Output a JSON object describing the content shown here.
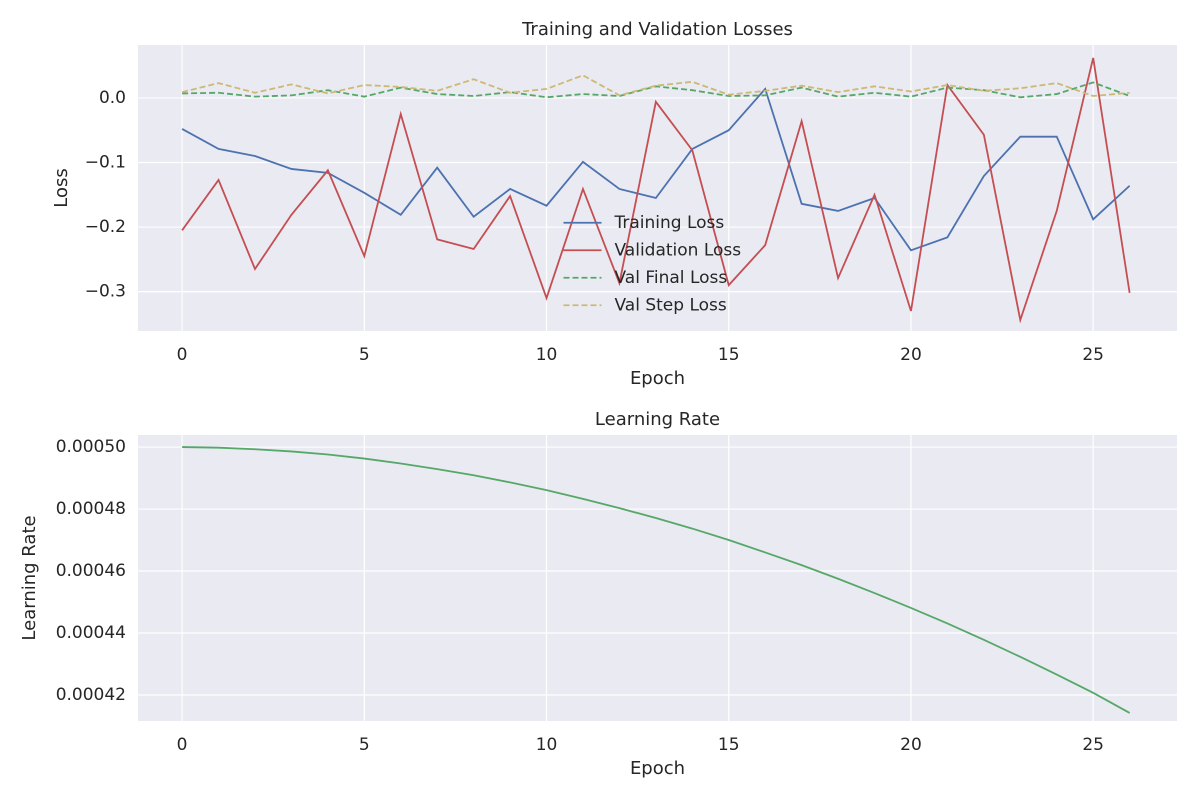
{
  "chart_data": [
    {
      "type": "line",
      "title": "Training and Validation Losses",
      "xlabel": "Epoch",
      "ylabel": "Loss",
      "x": [
        0,
        1,
        2,
        3,
        4,
        5,
        6,
        7,
        8,
        9,
        10,
        11,
        12,
        13,
        14,
        15,
        16,
        17,
        18,
        19,
        20,
        21,
        22,
        23,
        24,
        25,
        26
      ],
      "series": [
        {
          "name": "Training Loss",
          "color": "#4c72b0",
          "linestyle": "solid",
          "values": [
            -0.048,
            -0.079,
            -0.09,
            -0.11,
            -0.116,
            -0.147,
            -0.181,
            -0.108,
            -0.184,
            -0.141,
            -0.167,
            -0.099,
            -0.141,
            -0.155,
            -0.079,
            -0.05,
            0.014,
            -0.164,
            -0.175,
            -0.155,
            -0.236,
            -0.216,
            -0.121,
            -0.06,
            -0.06,
            -0.188,
            -0.136
          ]
        },
        {
          "name": "Validation Loss",
          "color": "#c44e52",
          "linestyle": "solid",
          "values": [
            -0.205,
            -0.127,
            -0.265,
            -0.181,
            -0.112,
            -0.245,
            -0.025,
            -0.219,
            -0.234,
            -0.152,
            -0.31,
            -0.141,
            -0.287,
            -0.006,
            -0.081,
            -0.29,
            -0.228,
            -0.036,
            -0.279,
            -0.15,
            -0.33,
            0.02,
            -0.057,
            -0.344,
            -0.175,
            0.062,
            -0.302
          ]
        },
        {
          "name": "Val Final Loss",
          "color": "#55a868",
          "linestyle": "dashed",
          "values": [
            0.007,
            0.008,
            0.002,
            0.004,
            0.012,
            0.002,
            0.016,
            0.006,
            0.003,
            0.009,
            0.001,
            0.006,
            0.003,
            0.018,
            0.012,
            0.003,
            0.004,
            0.016,
            0.002,
            0.008,
            0.002,
            0.016,
            0.012,
            0.001,
            0.006,
            0.024,
            0.003
          ]
        },
        {
          "name": "Val Step Loss",
          "color": "#ccb974",
          "linestyle": "dashed",
          "values": [
            0.009,
            0.023,
            0.008,
            0.021,
            0.007,
            0.02,
            0.017,
            0.011,
            0.029,
            0.008,
            0.014,
            0.035,
            0.004,
            0.019,
            0.025,
            0.005,
            0.011,
            0.019,
            0.009,
            0.018,
            0.01,
            0.02,
            0.011,
            0.015,
            0.023,
            0.003,
            0.008
          ]
        }
      ],
      "xlim": [
        -1.21,
        27.3
      ],
      "xticks": [
        0,
        5,
        10,
        15,
        20,
        25
      ],
      "ylim": [
        -0.361,
        0.082
      ],
      "yticks": [
        {
          "value": -0.3,
          "label": "−0.3"
        },
        {
          "value": -0.2,
          "label": "−0.2"
        },
        {
          "value": -0.1,
          "label": "−0.1"
        },
        {
          "value": 0,
          "label": "0.0"
        }
      ],
      "grid": true,
      "legend": "lower center"
    },
    {
      "type": "line",
      "title": "Learning Rate",
      "xlabel": "Epoch",
      "ylabel": "Learning Rate",
      "x": [
        0,
        1,
        2,
        3,
        4,
        5,
        6,
        7,
        8,
        9,
        10,
        11,
        12,
        13,
        14,
        15,
        16,
        17,
        18,
        19,
        20,
        21,
        22,
        23,
        24,
        25,
        26
      ],
      "series": [
        {
          "color": "#55a868",
          "linestyle": "solid",
          "values": [
            0.0005,
            0.0004998,
            0.0004993,
            0.0004986,
            0.0004976,
            0.0004963,
            0.0004947,
            0.0004929,
            0.0004909,
            0.0004886,
            0.0004861,
            0.0004833,
            0.0004803,
            0.0004771,
            0.0004737,
            0.00047,
            0.000466,
            0.0004619,
            0.0004575,
            0.0004529,
            0.0004481,
            0.0004431,
            0.0004378,
            0.0004323,
            0.0004266,
            0.0004207,
            0.0004142
          ]
        }
      ],
      "xlim": [
        -1.21,
        27.3
      ],
      "xticks": [
        0,
        5,
        10,
        15,
        20,
        25
      ],
      "ylim": [
        0.0004116,
        0.0005039
      ],
      "yticks": [
        {
          "value": 0.00042,
          "label": "0.00042"
        },
        {
          "value": 0.00044,
          "label": "0.00044"
        },
        {
          "value": 0.00046,
          "label": "0.00046"
        },
        {
          "value": 0.00048,
          "label": "0.00048"
        },
        {
          "value": 0.0005,
          "label": "0.00050"
        }
      ],
      "grid": true
    }
  ]
}
